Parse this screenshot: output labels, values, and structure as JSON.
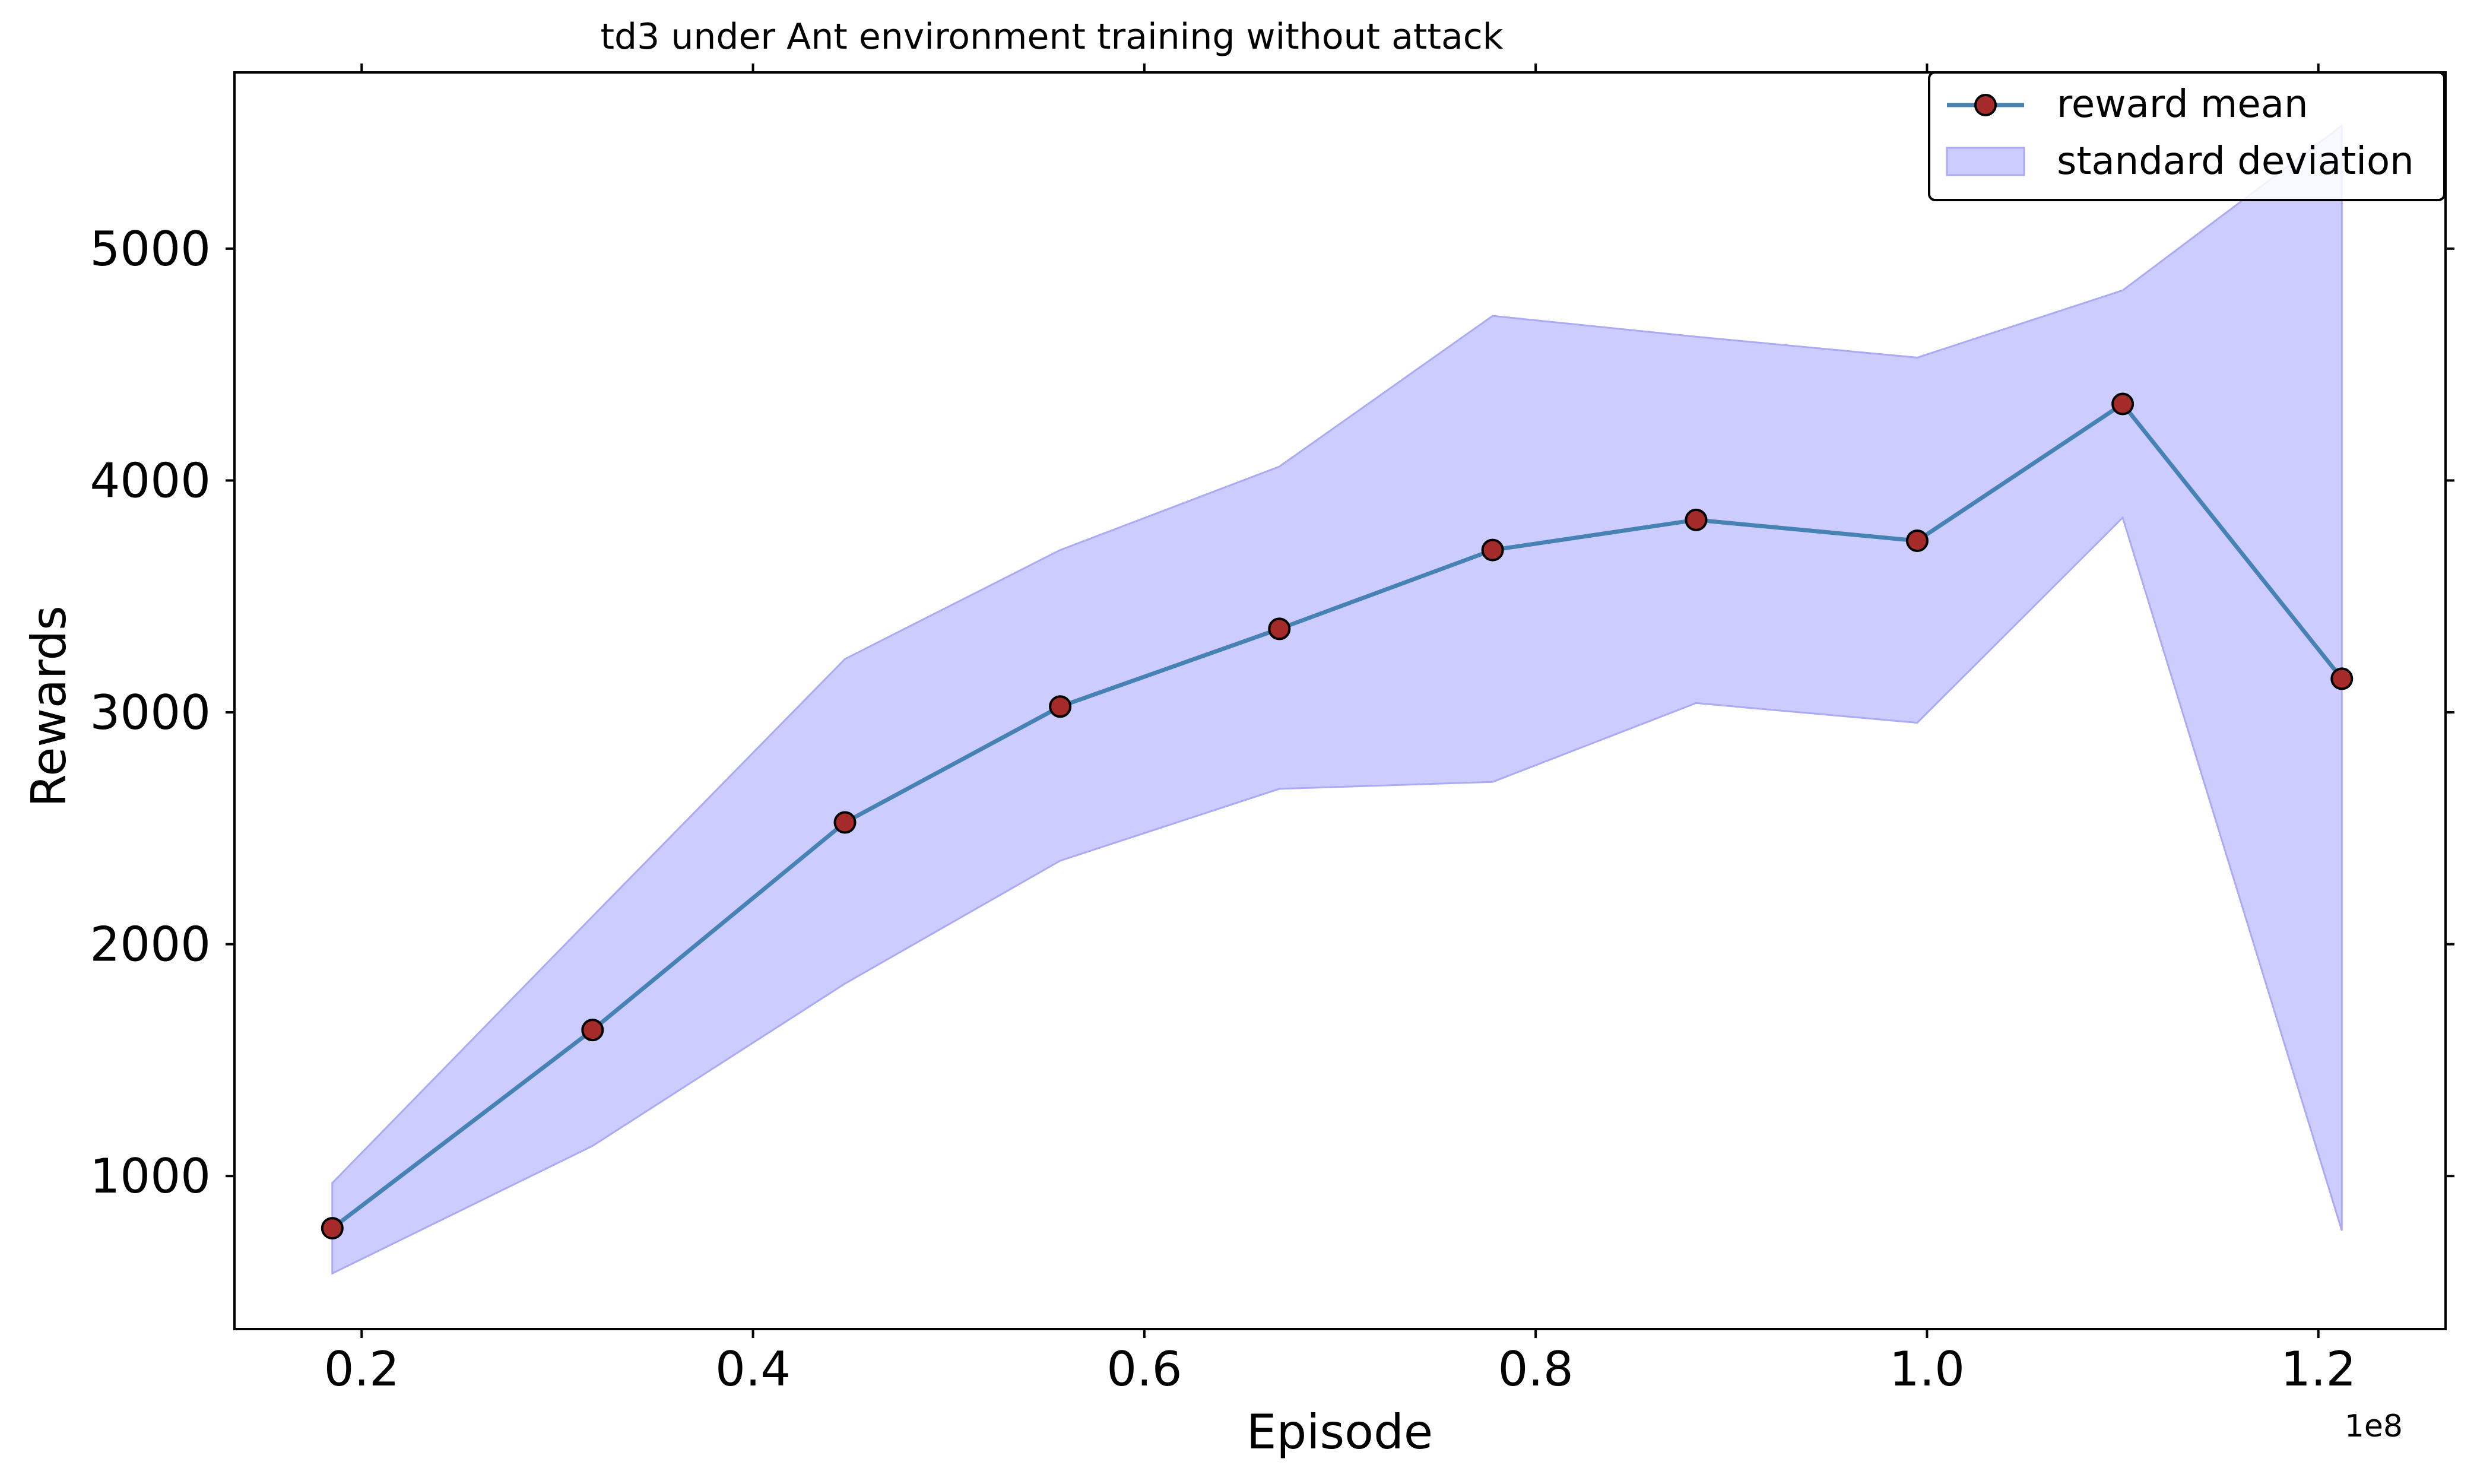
{
  "chart_data": {
    "type": "line",
    "title": "td3 under Ant environment training without attack",
    "xlabel": "Episode",
    "ylabel": "Rewards",
    "x_offset_label": "1e8",
    "xlim": [
      0.135,
      1.265
    ],
    "ylim": [
      340,
      5760
    ],
    "xticks": [
      0.2,
      0.4,
      0.6,
      0.8,
      1.0,
      1.2
    ],
    "xtick_labels": [
      "0.2",
      "0.4",
      "0.6",
      "0.8",
      "1.0",
      "1.2"
    ],
    "yticks": [
      1000,
      2000,
      3000,
      4000,
      5000
    ],
    "ytick_labels": [
      "1000",
      "2000",
      "3000",
      "4000",
      "5000"
    ],
    "grid": false,
    "legend_position": "top-right",
    "x": [
      0.185,
      0.318,
      0.447,
      0.557,
      0.669,
      0.778,
      0.882,
      0.995,
      1.1,
      1.212
    ],
    "series": [
      {
        "name": "reward mean",
        "kind": "line",
        "color": "#4682b4",
        "marker_face": "#a52a2a",
        "marker_edge": "#000000",
        "values": [
          775,
          1630,
          2525,
          3025,
          3360,
          3700,
          3830,
          3740,
          4330,
          3145
        ]
      },
      {
        "name": "standard deviation",
        "kind": "band",
        "color": "#0000ff",
        "opacity": 0.2,
        "upper": [
          970,
          2120,
          3230,
          3700,
          4060,
          4710,
          4620,
          4530,
          4820,
          5530
        ],
        "lower": [
          580,
          1130,
          1830,
          2360,
          2670,
          2700,
          3040,
          2955,
          3840,
          765
        ]
      }
    ]
  }
}
